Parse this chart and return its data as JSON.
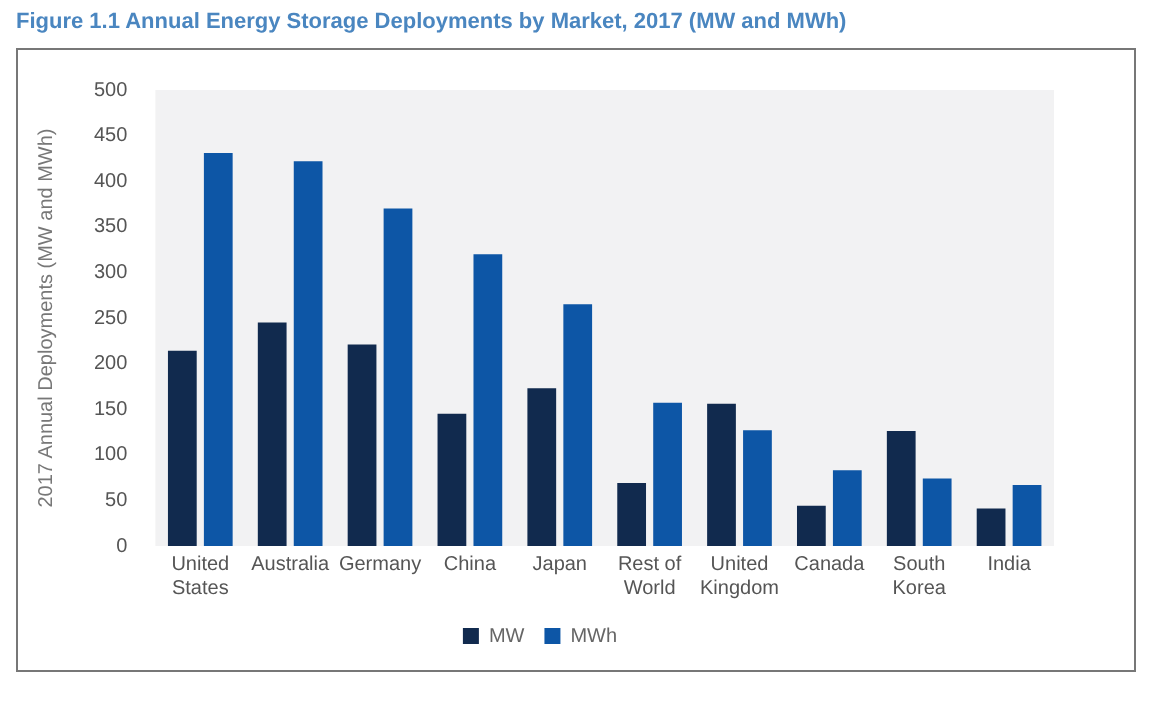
{
  "chart_data": {
    "type": "bar",
    "title": "Figure 1.1 Annual Energy Storage Deployments by Market, 2017  (MW and MWh)",
    "ylabel": "2017 Annual Deployments (MW and MWh)",
    "categories": [
      "United States",
      "Australia",
      "Germany",
      "China",
      "Japan",
      "Rest of World",
      "United Kingdom",
      "Canada",
      "South Korea",
      "India"
    ],
    "series": [
      {
        "name": "MW",
        "color": "#112a4e",
        "values": [
          214,
          245,
          221,
          145,
          173,
          69,
          156,
          44,
          126,
          41
        ]
      },
      {
        "name": "MWh",
        "color": "#0d56a6",
        "values": [
          431,
          422,
          370,
          320,
          265,
          157,
          127,
          83,
          74,
          67
        ]
      }
    ],
    "ylim": [
      0,
      500
    ],
    "yticks": [
      0,
      50,
      100,
      150,
      200,
      250,
      300,
      350,
      400,
      450,
      500
    ],
    "grid": false,
    "legend": "bottom"
  }
}
